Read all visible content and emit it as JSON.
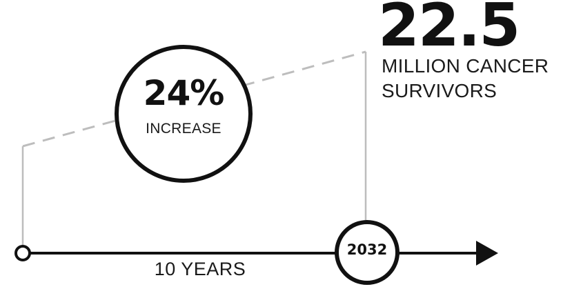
{
  "headline": {
    "value": "22.5",
    "caption_line1": "MILLION CANCER",
    "caption_line2": "SURVIVORS"
  },
  "increase": {
    "percent": "24%",
    "label": "INCREASE"
  },
  "timeline": {
    "end_year": "2032",
    "duration_label": "10 YEARS"
  },
  "colors": {
    "ink": "#111111",
    "guide_line": "#bdbdbd",
    "background": "#ffffff"
  }
}
